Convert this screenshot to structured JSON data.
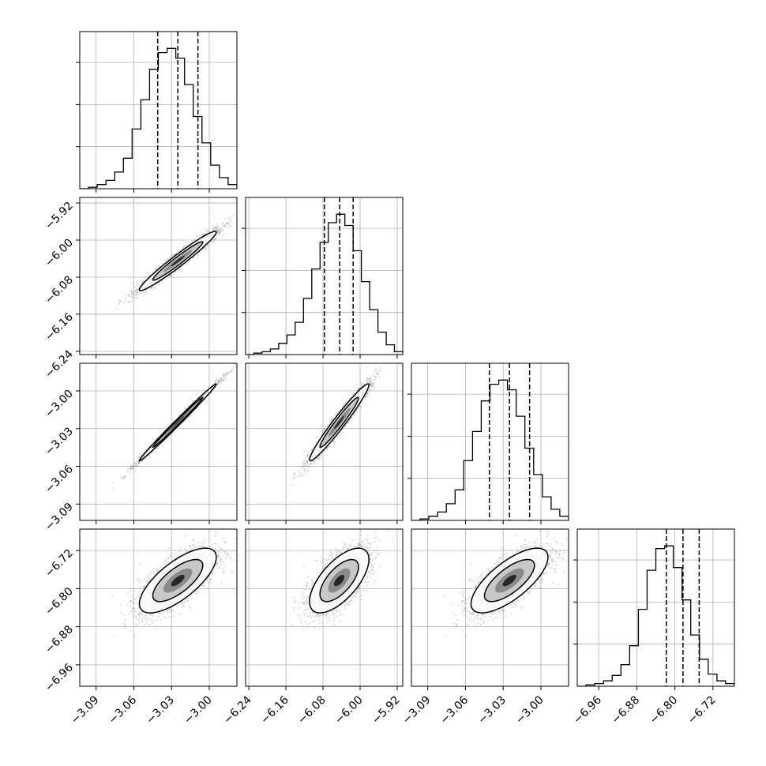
{
  "chart_data": {
    "type": "corner",
    "title": "",
    "parameters": [
      {
        "label": "",
        "ticks": [
          -3.09,
          -3.06,
          -3.03,
          -3.0
        ],
        "tick_labels": [
          "−3.09",
          "−3.06",
          "−3.03",
          "−3.00"
        ],
        "range": [
          -3.103,
          -2.978
        ],
        "quantiles": [
          -3.041,
          -3.025,
          -3.009
        ],
        "mean": -3.025,
        "sd": 0.0153
      },
      {
        "label": "",
        "ticks": [
          -6.24,
          -6.16,
          -6.08,
          -6.0,
          -5.92
        ],
        "tick_labels": [
          "−6.24",
          "−6.16",
          "−6.08",
          "−6.00",
          "−5.92"
        ],
        "range": [
          -6.247,
          -5.908
        ],
        "quantiles": [
          -6.077,
          -6.044,
          -6.015
        ],
        "mean": -6.045,
        "sd": 0.032
      },
      {
        "label": "",
        "ticks": [
          -3.09,
          -3.06,
          -3.03,
          -3.0
        ],
        "tick_labels": [
          "−3.09",
          "−3.06",
          "−3.03",
          "−3.00"
        ],
        "range": [
          -3.103,
          -2.978
        ],
        "quantiles": [
          -3.041,
          -3.025,
          -3.009
        ],
        "mean": -3.025,
        "sd": 0.0153
      },
      {
        "label": "",
        "ticks": [
          -6.96,
          -6.88,
          -6.8,
          -6.72
        ],
        "tick_labels": [
          "−6.96",
          "−6.88",
          "−6.80",
          "−6.72"
        ],
        "range": [
          -7.005,
          -6.675
        ],
        "quantiles": [
          -6.818,
          -6.783,
          -6.749
        ],
        "mean": -6.783,
        "sd": 0.034
      }
    ],
    "histograms": [
      {
        "param": 0,
        "counts": [
          0,
          1,
          3,
          6,
          12,
          22,
          43,
          64,
          86,
          98,
          101,
          94,
          75,
          52,
          33,
          17,
          8,
          3
        ]
      },
      {
        "param": 1,
        "counts": [
          0,
          1,
          2,
          4,
          8,
          14,
          23,
          40,
          61,
          80,
          94,
          100,
          92,
          74,
          52,
          32,
          16,
          7,
          2
        ]
      },
      {
        "param": 2,
        "counts": [
          0,
          1,
          3,
          6,
          12,
          22,
          43,
          64,
          86,
          98,
          101,
          94,
          75,
          52,
          33,
          17,
          8,
          3
        ]
      },
      {
        "param": 3,
        "counts": [
          0,
          1,
          2,
          4,
          8,
          16,
          30,
          57,
          86,
          102,
          104,
          88,
          64,
          38,
          20,
          9,
          4,
          2
        ]
      }
    ],
    "correlations": [
      {
        "row": 1,
        "col": 0,
        "rho": 0.97
      },
      {
        "row": 2,
        "col": 0,
        "rho": 0.995
      },
      {
        "row": 2,
        "col": 1,
        "rho": 0.97
      },
      {
        "row": 3,
        "col": 0,
        "rho": 0.72
      },
      {
        "row": 3,
        "col": 1,
        "rho": 0.65
      },
      {
        "row": 3,
        "col": 2,
        "rho": 0.72
      }
    ],
    "grid": true
  }
}
